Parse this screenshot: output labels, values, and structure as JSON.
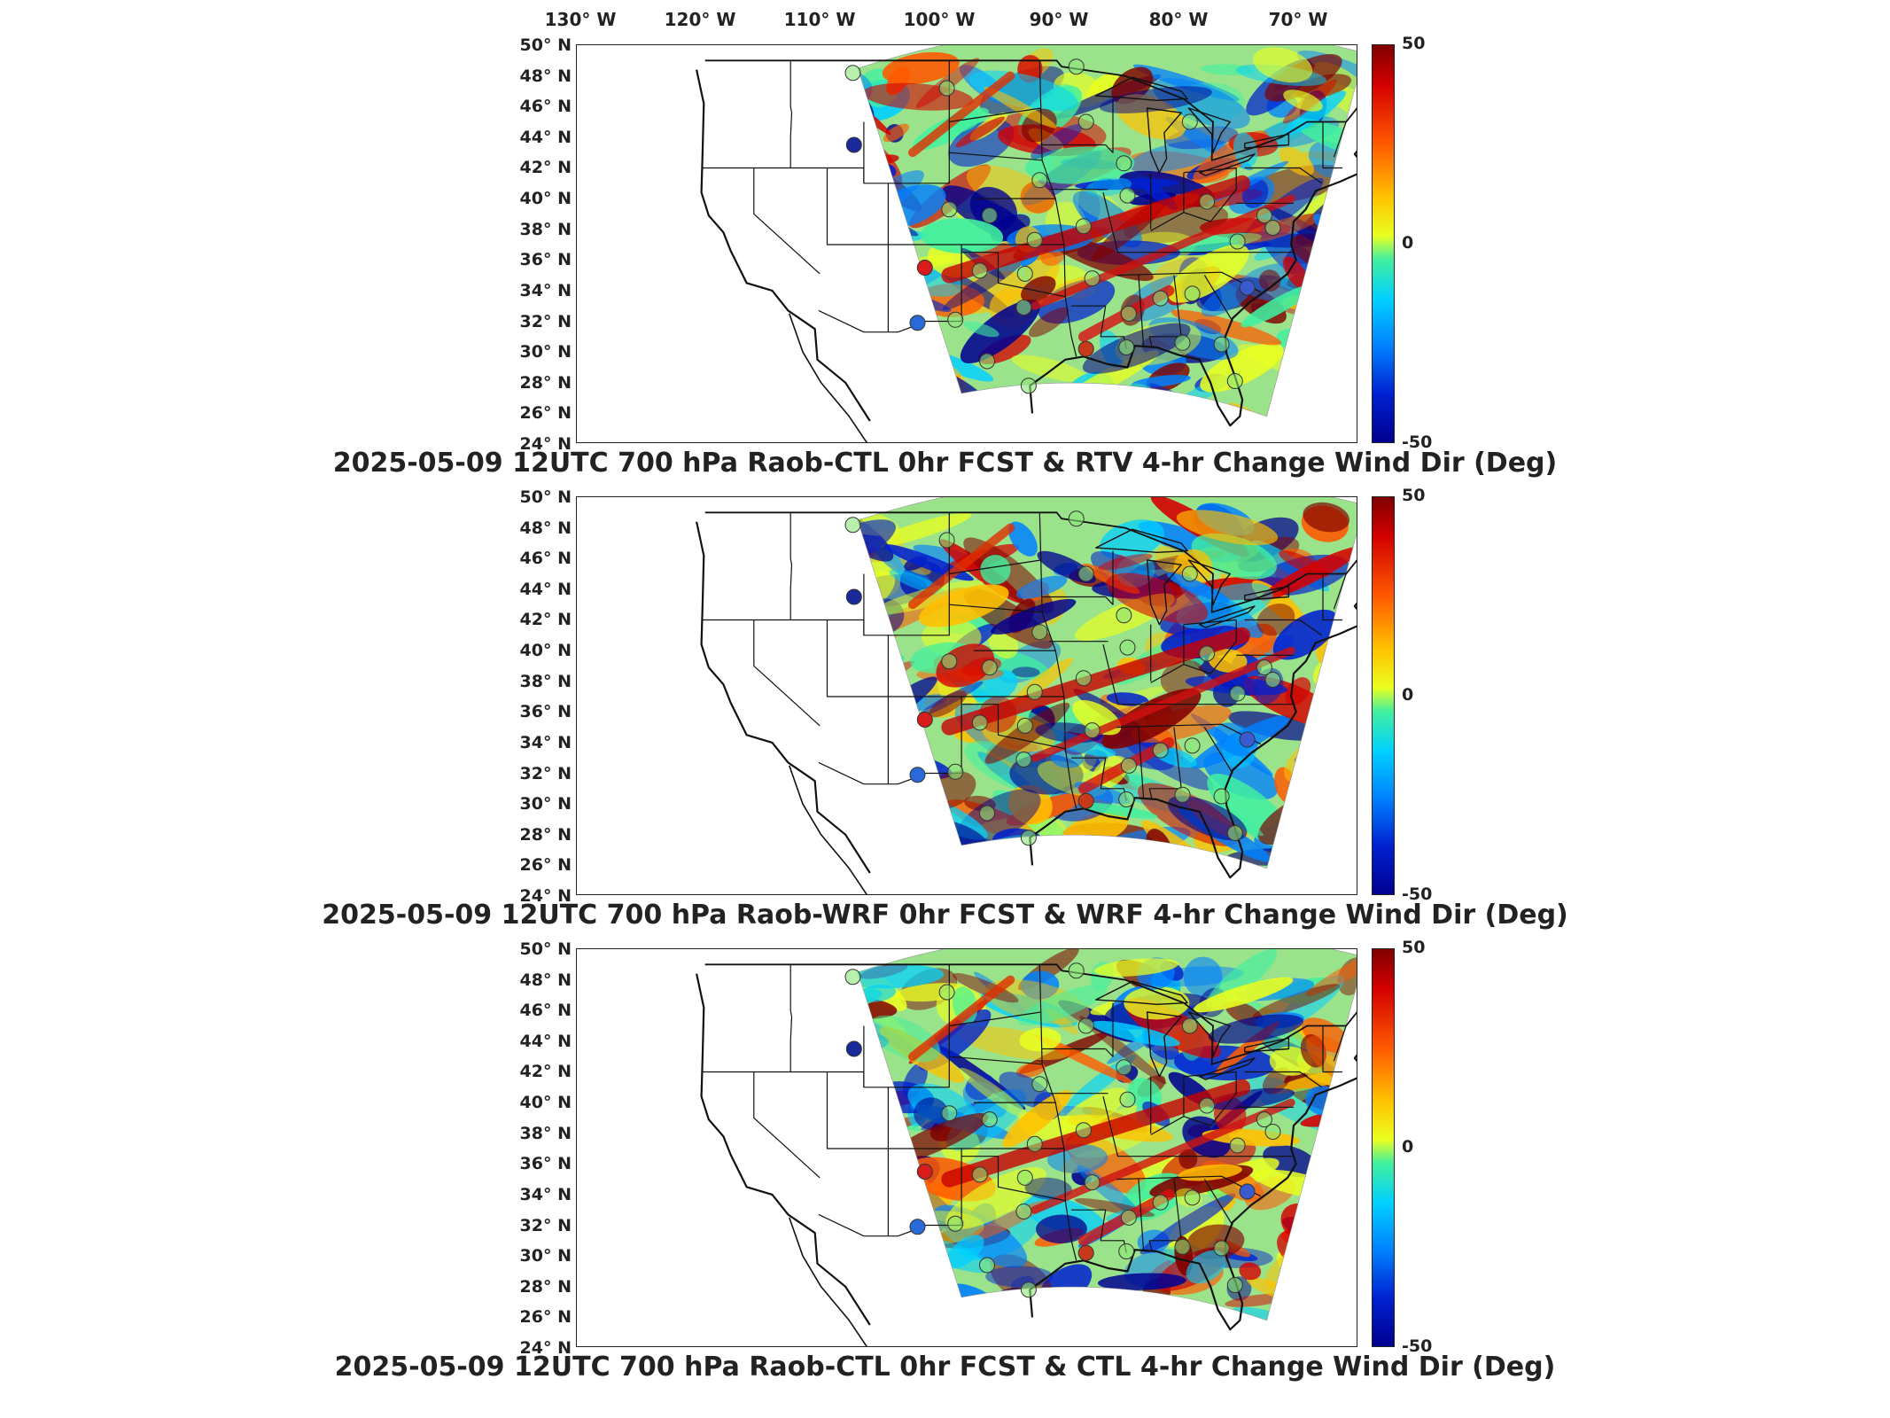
{
  "longitude_labels": [
    "130° W",
    "120° W",
    "110° W",
    "100° W",
    "90° W",
    "80° W",
    "70° W"
  ],
  "latitude_labels": [
    "50° N",
    "48° N",
    "46° N",
    "44° N",
    "42° N",
    "40° N",
    "38° N",
    "36° N",
    "34° N",
    "32° N",
    "30° N",
    "28° N",
    "26° N",
    "24° N"
  ],
  "colorbar": {
    "max": "50",
    "mid": "0",
    "min": "-50"
  },
  "colormap": [
    "#800000",
    "#d40000",
    "#ff5a00",
    "#ffc000",
    "#eaff20",
    "#40f0a0",
    "#00d0ff",
    "#0080ff",
    "#0020d0",
    "#000090"
  ],
  "panels": [
    {
      "title": "2025-05-09 12UTC 700 hPa Raob-CTL 0hr FCST & RTV 4-hr Change Wind Dir (Deg)"
    },
    {
      "title": "2025-05-09 12UTC 700 hPa Raob-WRF 0hr FCST & WRF 4-hr Change Wind Dir (Deg)"
    },
    {
      "title": "2025-05-09 12UTC 700 hPa Raob-CTL 0hr FCST & CTL 4-hr Change Wind Dir (Deg)"
    }
  ]
}
